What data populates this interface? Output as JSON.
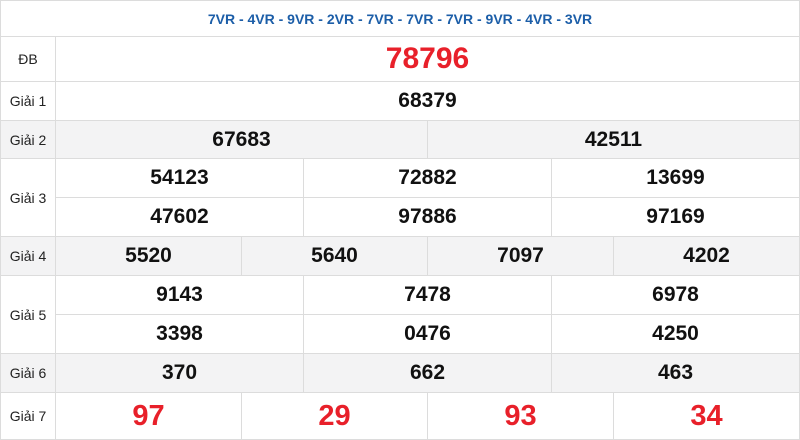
{
  "header": {
    "codes": "7VR - 4VR - 9VR - 2VR - 7VR - 7VR - 7VR - 9VR - 4VR - 3VR"
  },
  "colors": {
    "accent_blue": "#1c5ea8",
    "highlight_red": "#e8202a",
    "alt_row": "#f3f3f4"
  },
  "prizes": [
    {
      "label": "ĐB",
      "numbers": [
        "78796"
      ]
    },
    {
      "label": "Giải 1",
      "numbers": [
        "68379"
      ]
    },
    {
      "label": "Giải 2",
      "numbers": [
        "67683",
        "42511"
      ]
    },
    {
      "label": "Giải 3",
      "numbers": [
        "54123",
        "72882",
        "13699",
        "47602",
        "97886",
        "97169"
      ]
    },
    {
      "label": "Giải 4",
      "numbers": [
        "5520",
        "5640",
        "7097",
        "4202"
      ]
    },
    {
      "label": "Giải 5",
      "numbers": [
        "9143",
        "7478",
        "6978",
        "3398",
        "0476",
        "4250"
      ]
    },
    {
      "label": "Giải 6",
      "numbers": [
        "370",
        "662",
        "463"
      ]
    },
    {
      "label": "Giải 7",
      "numbers": [
        "97",
        "29",
        "93",
        "34"
      ]
    }
  ]
}
